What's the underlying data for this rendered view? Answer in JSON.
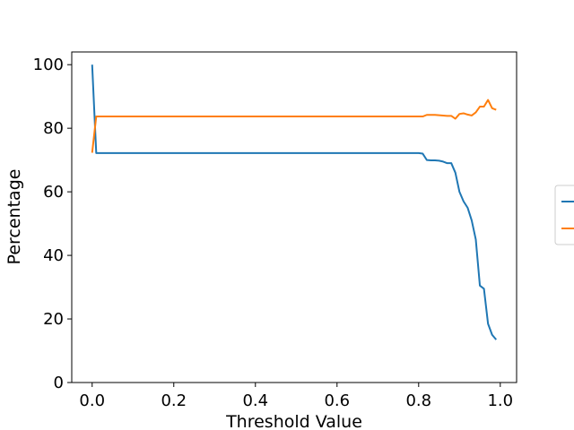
{
  "chart_data": {
    "type": "line",
    "xlabel": "Threshold Value",
    "ylabel": "Percentage",
    "xlim": [
      -0.05,
      1.04
    ],
    "ylim": [
      0,
      104
    ],
    "x_ticks": [
      0.0,
      0.2,
      0.4,
      0.6,
      0.8,
      1.0
    ],
    "x_tick_labels": [
      "0.0",
      "0.2",
      "0.4",
      "0.6",
      "0.8",
      "1.0"
    ],
    "y_ticks": [
      0,
      20,
      40,
      60,
      80,
      100
    ],
    "y_tick_labels": [
      "0",
      "20",
      "40",
      "60",
      "80",
      "100"
    ],
    "grid": false,
    "legend": "right (partially cropped, entries not readable)",
    "series": [
      {
        "color": "#1f77b4",
        "points": [
          [
            0.0,
            100
          ],
          [
            0.01,
            72.2
          ],
          [
            0.2,
            72.2
          ],
          [
            0.4,
            72.2
          ],
          [
            0.6,
            72.2
          ],
          [
            0.8,
            72.2
          ],
          [
            0.81,
            72.0
          ],
          [
            0.82,
            70.0
          ],
          [
            0.83,
            69.9
          ],
          [
            0.84,
            69.9
          ],
          [
            0.85,
            69.8
          ],
          [
            0.86,
            69.5
          ],
          [
            0.87,
            69.0
          ],
          [
            0.88,
            69.0
          ],
          [
            0.89,
            66.0
          ],
          [
            0.9,
            60.0
          ],
          [
            0.91,
            57.0
          ],
          [
            0.92,
            55.0
          ],
          [
            0.93,
            51.0
          ],
          [
            0.94,
            45.0
          ],
          [
            0.95,
            30.5
          ],
          [
            0.96,
            29.5
          ],
          [
            0.97,
            18.5
          ],
          [
            0.98,
            15.0
          ],
          [
            0.99,
            13.5
          ]
        ]
      },
      {
        "color": "#ff7f0e",
        "points": [
          [
            0.0,
            72.3
          ],
          [
            0.01,
            83.7
          ],
          [
            0.2,
            83.7
          ],
          [
            0.4,
            83.7
          ],
          [
            0.6,
            83.7
          ],
          [
            0.8,
            83.7
          ],
          [
            0.81,
            83.7
          ],
          [
            0.82,
            84.2
          ],
          [
            0.83,
            84.2
          ],
          [
            0.84,
            84.2
          ],
          [
            0.85,
            84.1
          ],
          [
            0.86,
            84.0
          ],
          [
            0.87,
            83.9
          ],
          [
            0.88,
            83.9
          ],
          [
            0.89,
            83.0
          ],
          [
            0.9,
            84.5
          ],
          [
            0.91,
            84.7
          ],
          [
            0.92,
            84.3
          ],
          [
            0.93,
            84.0
          ],
          [
            0.94,
            85.0
          ],
          [
            0.95,
            86.8
          ],
          [
            0.96,
            86.8
          ],
          [
            0.97,
            88.9
          ],
          [
            0.98,
            86.3
          ],
          [
            0.99,
            85.8
          ]
        ]
      }
    ]
  }
}
